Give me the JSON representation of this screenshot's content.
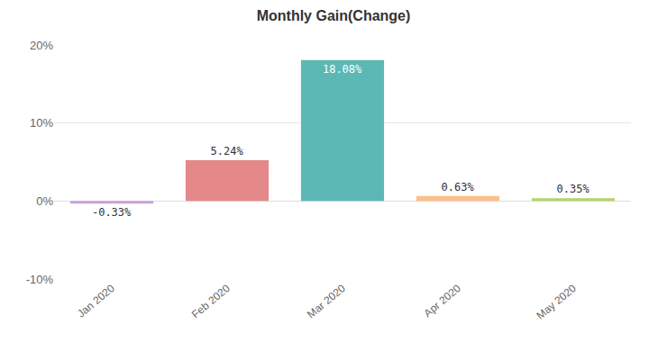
{
  "chart_data": {
    "type": "bar",
    "title": "Monthly Gain(Change)",
    "categories": [
      "Jan 2020",
      "Feb 2020",
      "Mar 2020",
      "Apr 2020",
      "May 2020"
    ],
    "values": [
      -0.33,
      5.24,
      18.08,
      0.63,
      0.35
    ],
    "value_labels": [
      "-0.33%",
      "5.24%",
      "18.08%",
      "0.63%",
      "0.35%"
    ],
    "colors": [
      "#c9a3d4",
      "#e4888a",
      "#5cb8b4",
      "#fcbf8c",
      "#b5d36c"
    ],
    "ylim": [
      -10,
      20
    ],
    "yticks": [
      {
        "value": -10,
        "label": "-10%"
      },
      {
        "value": 0,
        "label": "0%"
      },
      {
        "value": 10,
        "label": "10%"
      },
      {
        "value": 20,
        "label": "20%"
      }
    ],
    "grid": true,
    "data_labels": true
  }
}
